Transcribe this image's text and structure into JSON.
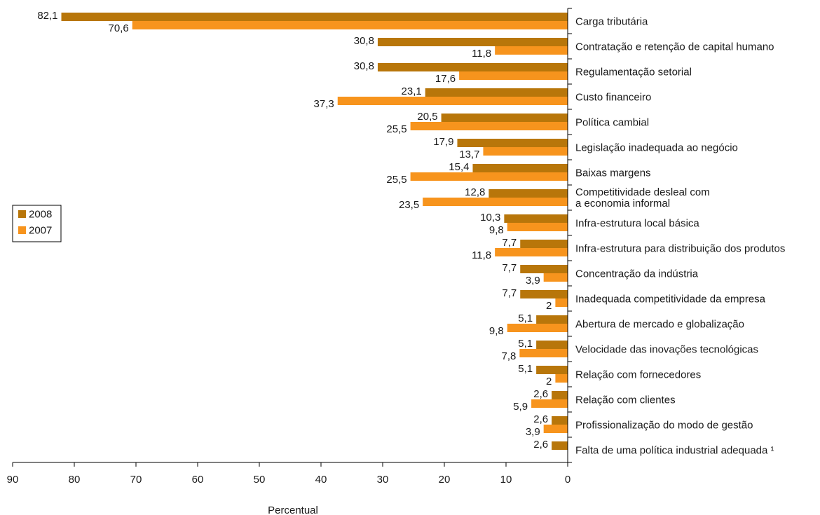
{
  "chart_data": {
    "type": "bar",
    "orientation": "horizontal",
    "x_direction": "reversed",
    "xlabel": "Percentual",
    "xlim": [
      0,
      90
    ],
    "xticks": [
      "90",
      "80",
      "70",
      "60",
      "50",
      "40",
      "30",
      "20",
      "10",
      "0"
    ],
    "grid": false,
    "legend_position": "left",
    "categories": [
      [
        "Carga tributária"
      ],
      [
        "Contratação e retenção de capital humano"
      ],
      [
        "Regulamentação setorial"
      ],
      [
        "Custo financeiro"
      ],
      [
        "Política cambial"
      ],
      [
        "Legislação inadequada ao negócio"
      ],
      [
        "Baixas margens"
      ],
      [
        "Competitividade desleal com",
        "a economia informal"
      ],
      [
        "Infra-estrutura local básica"
      ],
      [
        "Infra-estrutura para distribuição dos produtos"
      ],
      [
        "Concentração da indústria"
      ],
      [
        "Inadequada competitividade da empresa"
      ],
      [
        "Abertura de mercado e globalização"
      ],
      [
        "Velocidade das inovações tecnológicas"
      ],
      [
        "Relação com fornecedores"
      ],
      [
        "Relação com clientes"
      ],
      [
        "Profissionalização do modo de gestão"
      ],
      [
        "Falta de uma política industrial adequada ¹"
      ]
    ],
    "series": [
      {
        "name": "2008",
        "color": "#b8760a",
        "values": [
          82.1,
          30.8,
          30.8,
          23.1,
          20.5,
          17.9,
          15.4,
          12.8,
          10.3,
          7.7,
          7.7,
          7.7,
          5.1,
          5.1,
          5.1,
          2.6,
          2.6,
          2.6
        ],
        "labels": [
          "82,1",
          "30,8",
          "30,8",
          "23,1",
          "20,5",
          "17,9",
          "15,4",
          "12,8",
          "10,3",
          "7,7",
          "7,7",
          "7,7",
          "5,1",
          "5,1",
          "5,1",
          "2,6",
          "2,6",
          "2,6"
        ]
      },
      {
        "name": "2007",
        "color": "#f7941d",
        "values": [
          70.6,
          11.8,
          17.6,
          37.3,
          25.5,
          13.7,
          25.5,
          23.5,
          9.8,
          11.8,
          3.9,
          2,
          9.8,
          7.8,
          2,
          5.9,
          3.9,
          null
        ],
        "labels": [
          "70,6",
          "11,8",
          "17,6",
          "37,3",
          "25,5",
          "13,7",
          "25,5",
          "23,5",
          "9,8",
          "11,8",
          "3,9",
          "2",
          "9,8",
          "7,8",
          "2",
          "5,9",
          "3,9",
          null
        ]
      }
    ]
  }
}
